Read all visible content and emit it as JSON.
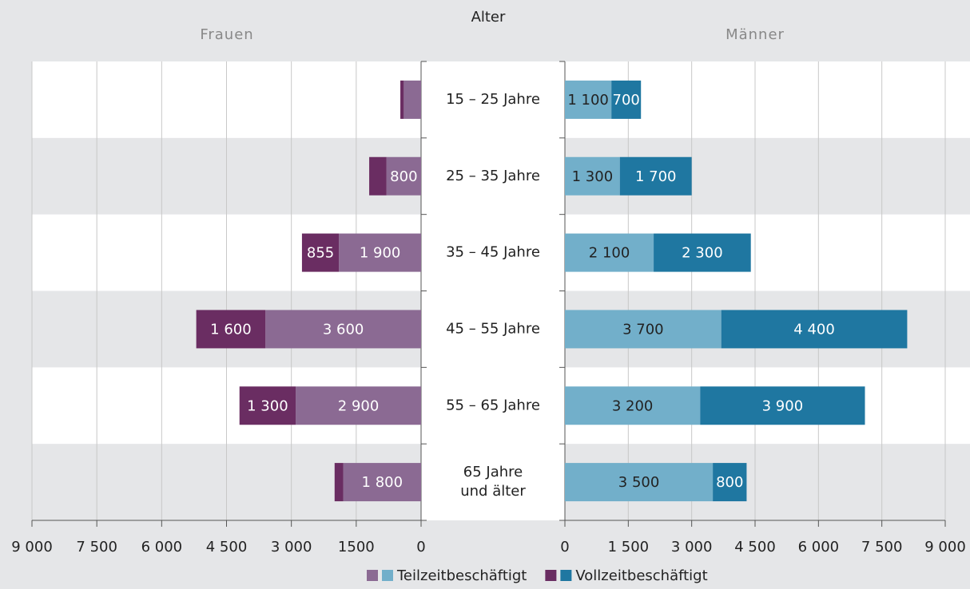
{
  "chart_data": {
    "type": "pyramid",
    "title": "Alter",
    "categories": [
      "15 – 25 Jahre",
      "25 – 35 Jahre",
      "35 – 45 Jahre",
      "45 – 55 Jahre",
      "55 – 65 Jahre",
      "65 Jahre\nund älter"
    ],
    "left": {
      "title": "Frauen",
      "xlim": [
        9000,
        0
      ],
      "xticks": [
        {
          "value": 9000,
          "label": "9 000"
        },
        {
          "value": 7500,
          "label": "7 500"
        },
        {
          "value": 6000,
          "label": "6 000"
        },
        {
          "value": 4500,
          "label": "4 500"
        },
        {
          "value": 3000,
          "label": "3 000"
        },
        1500,
        0
      ],
      "series": [
        {
          "name": "Teilzeitbeschäftigt",
          "color": "#8b6a93",
          "values": [
            400,
            800,
            1900,
            3600,
            2900,
            1800
          ],
          "value_labels": [
            null,
            "800",
            "1 900",
            "3 600",
            "2 900",
            "1 800"
          ]
        },
        {
          "name": "Vollzeitbeschäftigt",
          "color": "#6a2d62",
          "values": [
            80,
            400,
            855,
            1600,
            1300,
            200
          ],
          "value_labels": [
            null,
            null,
            "855",
            "1 600",
            "1 300",
            null
          ]
        }
      ]
    },
    "right": {
      "title": "Männer",
      "xlim": [
        0,
        9000
      ],
      "xticks": [
        0,
        {
          "value": 1500,
          "label": "1 500"
        },
        {
          "value": 3000,
          "label": "3 000"
        },
        {
          "value": 4500,
          "label": "4 500"
        },
        {
          "value": 6000,
          "label": "6 000"
        },
        {
          "value": 7500,
          "label": "7 500"
        },
        {
          "value": 9000,
          "label": "9 000"
        }
      ],
      "series": [
        {
          "color": "#72afca",
          "values": [
            1100,
            1300,
            2100,
            3700,
            3200,
            3500
          ],
          "value_labels": [
            "1 100",
            "1 300",
            "2 100",
            "3 700",
            "3 200",
            "3 500"
          ]
        },
        {
          "color": "#1f77a1",
          "values": [
            700,
            1700,
            2300,
            4400,
            3900,
            800
          ],
          "value_labels": [
            "700",
            "1 700",
            "2 300",
            "4 400",
            "3 900",
            "800"
          ]
        }
      ]
    },
    "grid": true
  }
}
